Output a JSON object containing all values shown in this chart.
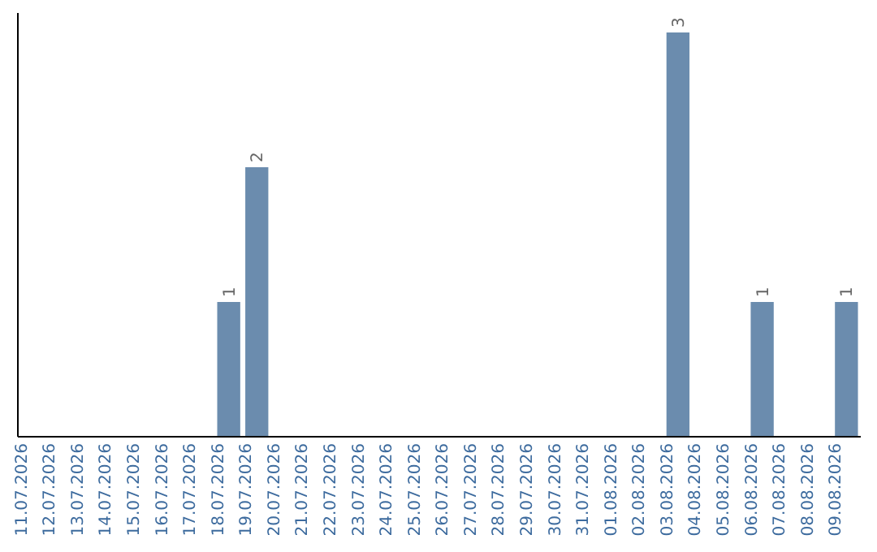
{
  "chart_data": {
    "type": "bar",
    "categories": [
      "11.07.2026",
      "12.07.2026",
      "13.07.2026",
      "14.07.2026",
      "15.07.2026",
      "16.07.2026",
      "17.07.2026",
      "18.07.2026",
      "19.07.2026",
      "20.07.2026",
      "21.07.2026",
      "22.07.2026",
      "23.07.2026",
      "24.07.2026",
      "25.07.2026",
      "26.07.2026",
      "27.07.2026",
      "28.07.2026",
      "29.07.2026",
      "30.07.2026",
      "31.07.2026",
      "01.08.2026",
      "02.08.2026",
      "03.08.2026",
      "04.08.2026",
      "05.08.2026",
      "06.08.2026",
      "07.08.2026",
      "08.08.2026",
      "09.08.2026"
    ],
    "values": [
      0,
      0,
      0,
      0,
      0,
      0,
      0,
      1,
      2,
      0,
      0,
      0,
      0,
      0,
      0,
      0,
      0,
      0,
      0,
      0,
      0,
      0,
      0,
      3,
      0,
      0,
      1,
      0,
      0,
      1
    ],
    "color": "#6b8cae",
    "value_labels": [
      null,
      null,
      null,
      null,
      null,
      null,
      null,
      "1",
      "2",
      null,
      null,
      null,
      null,
      null,
      null,
      null,
      null,
      null,
      null,
      null,
      null,
      null,
      null,
      "3",
      null,
      null,
      "1",
      null,
      null,
      "1"
    ],
    "tick_labels": "x",
    "grid": false
  }
}
